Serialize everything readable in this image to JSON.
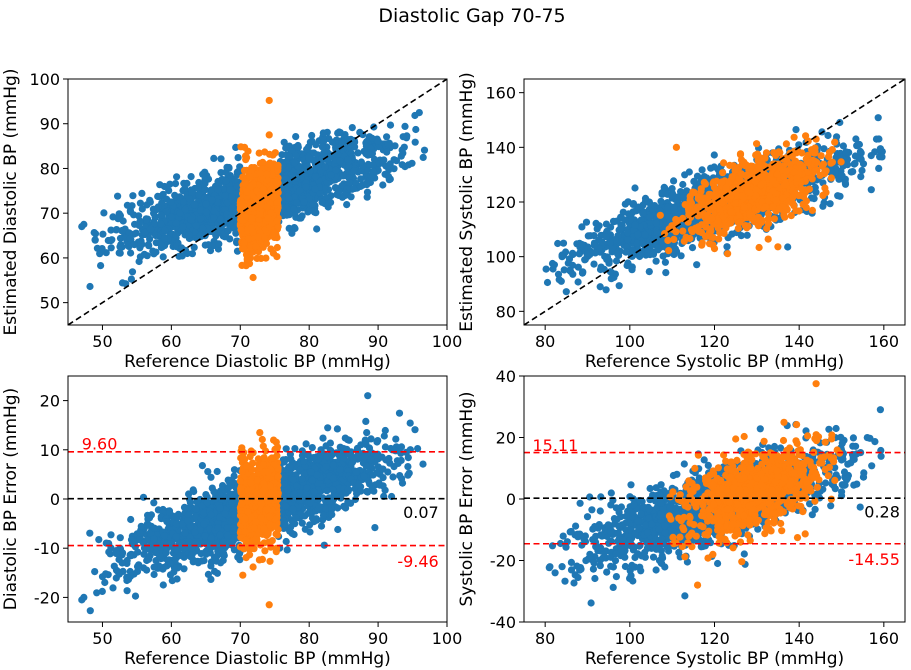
{
  "figure": {
    "title": "Diastolic Gap 70-75",
    "colors": {
      "in_gap": "#ff7f0e",
      "out_gap": "#1f77b4",
      "loa": "#ff0000",
      "mean": "#000000"
    }
  },
  "chart_data": [
    {
      "id": "dbp-estimate",
      "type": "scatter",
      "title": "",
      "xlabel": "Reference Diastolic BP (mmHg)",
      "ylabel": "Estimated Diastolic BP (mmHg)",
      "xlim": [
        45,
        100
      ],
      "ylim": [
        45,
        100
      ],
      "xticks": [
        50,
        60,
        70,
        80,
        90,
        100
      ],
      "yticks": [
        50,
        60,
        70,
        80,
        90,
        100
      ],
      "identity_line": true,
      "clouds": [
        {
          "color": "out_gap",
          "count": 1500,
          "x_range": [
            48,
            97
          ],
          "slope": 0.48,
          "intercept": 39.5,
          "spread": 3.8,
          "exclude_x": [
            70,
            75.5
          ]
        },
        {
          "color": "in_gap",
          "count": 650,
          "x_range": [
            70,
            75.5
          ],
          "slope": 0.48,
          "intercept": 36.5,
          "spread": 4.8
        }
      ],
      "points": [
        {
          "x": 47,
          "y": 67,
          "color": "out_gap"
        },
        {
          "x": 47.3,
          "y": 67.5,
          "color": "out_gap"
        },
        {
          "x": 74.2,
          "y": 95.2,
          "color": "in_gap"
        },
        {
          "x": 74.2,
          "y": 87.5,
          "color": "in_gap"
        }
      ],
      "hlines": [],
      "annotations": []
    },
    {
      "id": "sbp-estimate",
      "type": "scatter",
      "title": "",
      "xlabel": "Reference Systolic BP (mmHg)",
      "ylabel": "Estimated Systolic BP (mmHg)",
      "xlim": [
        75,
        165
      ],
      "ylim": [
        75,
        165
      ],
      "xticks": [
        80,
        100,
        120,
        140,
        160
      ],
      "yticks": [
        80,
        100,
        120,
        140,
        160
      ],
      "identity_line": true,
      "clouds": [
        {
          "color": "out_gap",
          "count": 1500,
          "x_range": [
            80,
            160
          ],
          "slope": 0.55,
          "intercept": 52,
          "spread": 6
        },
        {
          "color": "in_gap",
          "count": 750,
          "x_range": [
            107,
            150
          ],
          "slope": 0.55,
          "intercept": 52,
          "spread": 6.5
        }
      ],
      "points": [
        {
          "x": 84,
          "y": 100,
          "color": "out_gap"
        },
        {
          "x": 93,
          "y": 89,
          "color": "out_gap"
        },
        {
          "x": 111,
          "y": 140,
          "color": "in_gap"
        },
        {
          "x": 144,
          "y": 143,
          "color": "in_gap"
        }
      ],
      "hlines": [],
      "annotations": []
    },
    {
      "id": "dbp-error",
      "type": "scatter",
      "title": "",
      "xlabel": "Reference Diastolic BP (mmHg)",
      "ylabel": "Diastolic BP Error (mmHg)",
      "xlim": [
        45,
        100
      ],
      "ylim": [
        -25,
        25
      ],
      "xticks": [
        50,
        60,
        70,
        80,
        90,
        100
      ],
      "yticks": [
        -20,
        -10,
        0,
        10,
        20
      ],
      "identity_line": false,
      "clouds": [
        {
          "color": "out_gap",
          "count": 1500,
          "x_range": [
            48,
            97
          ],
          "slope": 0.52,
          "intercept": -39.5,
          "spread": 3.8,
          "exclude_x": [
            70,
            75.5
          ]
        },
        {
          "color": "in_gap",
          "count": 650,
          "x_range": [
            70,
            75.5
          ],
          "slope": 0.52,
          "intercept": -38.5,
          "spread": 4.8
        }
      ],
      "points": [
        {
          "x": 47,
          "y": -20.5,
          "color": "out_gap"
        },
        {
          "x": 47.3,
          "y": -20,
          "color": "out_gap"
        },
        {
          "x": 88.5,
          "y": 21,
          "color": "out_gap"
        },
        {
          "x": 74.2,
          "y": -21.5,
          "color": "in_gap"
        }
      ],
      "hlines": [
        {
          "y": 9.6,
          "color": "loa"
        },
        {
          "y": 0.07,
          "color": "mean"
        },
        {
          "y": -9.46,
          "color": "loa"
        }
      ],
      "annotations": [
        {
          "text": "9.60",
          "x": 47,
          "y": 11.3,
          "anchor": "start",
          "color": "loa"
        },
        {
          "text": "0.07",
          "x": 98.8,
          "y": -2.6,
          "anchor": "end",
          "color": "mean"
        },
        {
          "text": "-9.46",
          "x": 98.8,
          "y": -12.6,
          "anchor": "end",
          "color": "loa"
        }
      ]
    },
    {
      "id": "sbp-error",
      "type": "scatter",
      "title": "",
      "xlabel": "Reference Systolic BP (mmHg)",
      "ylabel": "Systolic BP Error (mmHg)",
      "xlim": [
        75,
        165
      ],
      "ylim": [
        -40,
        40
      ],
      "xticks": [
        80,
        100,
        120,
        140,
        160
      ],
      "yticks": [
        -40,
        -20,
        0,
        20,
        40
      ],
      "identity_line": false,
      "clouds": [
        {
          "color": "out_gap",
          "count": 1500,
          "x_range": [
            80,
            160
          ],
          "slope": 0.45,
          "intercept": -56,
          "spread": 6
        },
        {
          "color": "in_gap",
          "count": 750,
          "x_range": [
            107,
            150
          ],
          "slope": 0.45,
          "intercept": -56,
          "spread": 6.5
        }
      ],
      "points": [
        {
          "x": 144,
          "y": 37.5,
          "color": "in_gap"
        },
        {
          "x": 116,
          "y": -28,
          "color": "in_gap"
        },
        {
          "x": 113,
          "y": -31.5,
          "color": "out_gap"
        },
        {
          "x": 84,
          "y": -22,
          "color": "out_gap"
        }
      ],
      "hlines": [
        {
          "y": 15.11,
          "color": "loa"
        },
        {
          "y": 0.28,
          "color": "mean"
        },
        {
          "y": -14.55,
          "color": "loa"
        }
      ],
      "annotations": [
        {
          "text": "15.11",
          "x": 77,
          "y": 17.6,
          "anchor": "start",
          "color": "loa"
        },
        {
          "text": "0.28",
          "x": 163.8,
          "y": -4,
          "anchor": "end",
          "color": "mean"
        },
        {
          "text": "-14.55",
          "x": 163.8,
          "y": -19.5,
          "anchor": "end",
          "color": "loa"
        }
      ]
    }
  ]
}
